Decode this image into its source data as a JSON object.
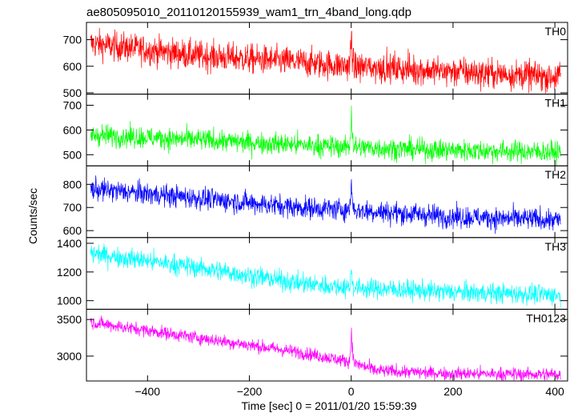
{
  "chart_data": {
    "type": "line",
    "title": "ae805095010_20110120155939_wam1_trn_4band_long.qdp",
    "xlabel": "Time [sec] 0 = 2011/01/20 15:59:39",
    "ylabel": "Counts/sec",
    "xlim": [
      -520,
      425
    ],
    "xticks": [
      -400,
      -200,
      0,
      200,
      400
    ],
    "grid": false,
    "panels": [
      {
        "name": "TH0",
        "color": "#ff0000",
        "ylim": [
          495,
          765
        ],
        "yticks": [
          500,
          600,
          700
        ],
        "trend": [
          [
            -510,
            685
          ],
          [
            -300,
            640
          ],
          [
            -100,
            615
          ],
          [
            0,
            600
          ],
          [
            100,
            590
          ],
          [
            250,
            575
          ],
          [
            410,
            560
          ]
        ],
        "noise": 28,
        "peak": 760
      },
      {
        "name": "TH1",
        "color": "#00ff00",
        "ylim": [
          455,
          745
        ],
        "yticks": [
          500,
          600,
          700
        ],
        "trend": [
          [
            -510,
            580
          ],
          [
            -300,
            560
          ],
          [
            -100,
            540
          ],
          [
            0,
            530
          ],
          [
            150,
            520
          ],
          [
            410,
            510
          ]
        ],
        "noise": 22,
        "peak": 740
      },
      {
        "name": "TH2",
        "color": "#0000ff",
        "ylim": [
          570,
          880
        ],
        "yticks": [
          600,
          700,
          800
        ],
        "trend": [
          [
            -510,
            780
          ],
          [
            -300,
            740
          ],
          [
            -100,
            700
          ],
          [
            0,
            690
          ],
          [
            200,
            660
          ],
          [
            410,
            645
          ]
        ],
        "noise": 24,
        "peak": 860
      },
      {
        "name": "TH3",
        "color": "#00ffff",
        "ylim": [
          940,
          1440
        ],
        "yticks": [
          1000,
          1200,
          1400
        ],
        "trend": [
          [
            -510,
            1330
          ],
          [
            -300,
            1230
          ],
          [
            -100,
            1120
          ],
          [
            0,
            1090
          ],
          [
            200,
            1060
          ],
          [
            410,
            1040
          ]
        ],
        "noise": 35,
        "peak": 1260
      },
      {
        "name": "TH0123",
        "color": "#ff00ff",
        "ylim": [
          2660,
          3640
        ],
        "yticks": [
          3000,
          3500
        ],
        "trend": [
          [
            -510,
            3460
          ],
          [
            -300,
            3250
          ],
          [
            -100,
            3050
          ],
          [
            0,
            2920
          ],
          [
            50,
            2800
          ],
          [
            200,
            2760
          ],
          [
            410,
            2750
          ]
        ],
        "noise": 45,
        "peak": 3580
      }
    ]
  }
}
